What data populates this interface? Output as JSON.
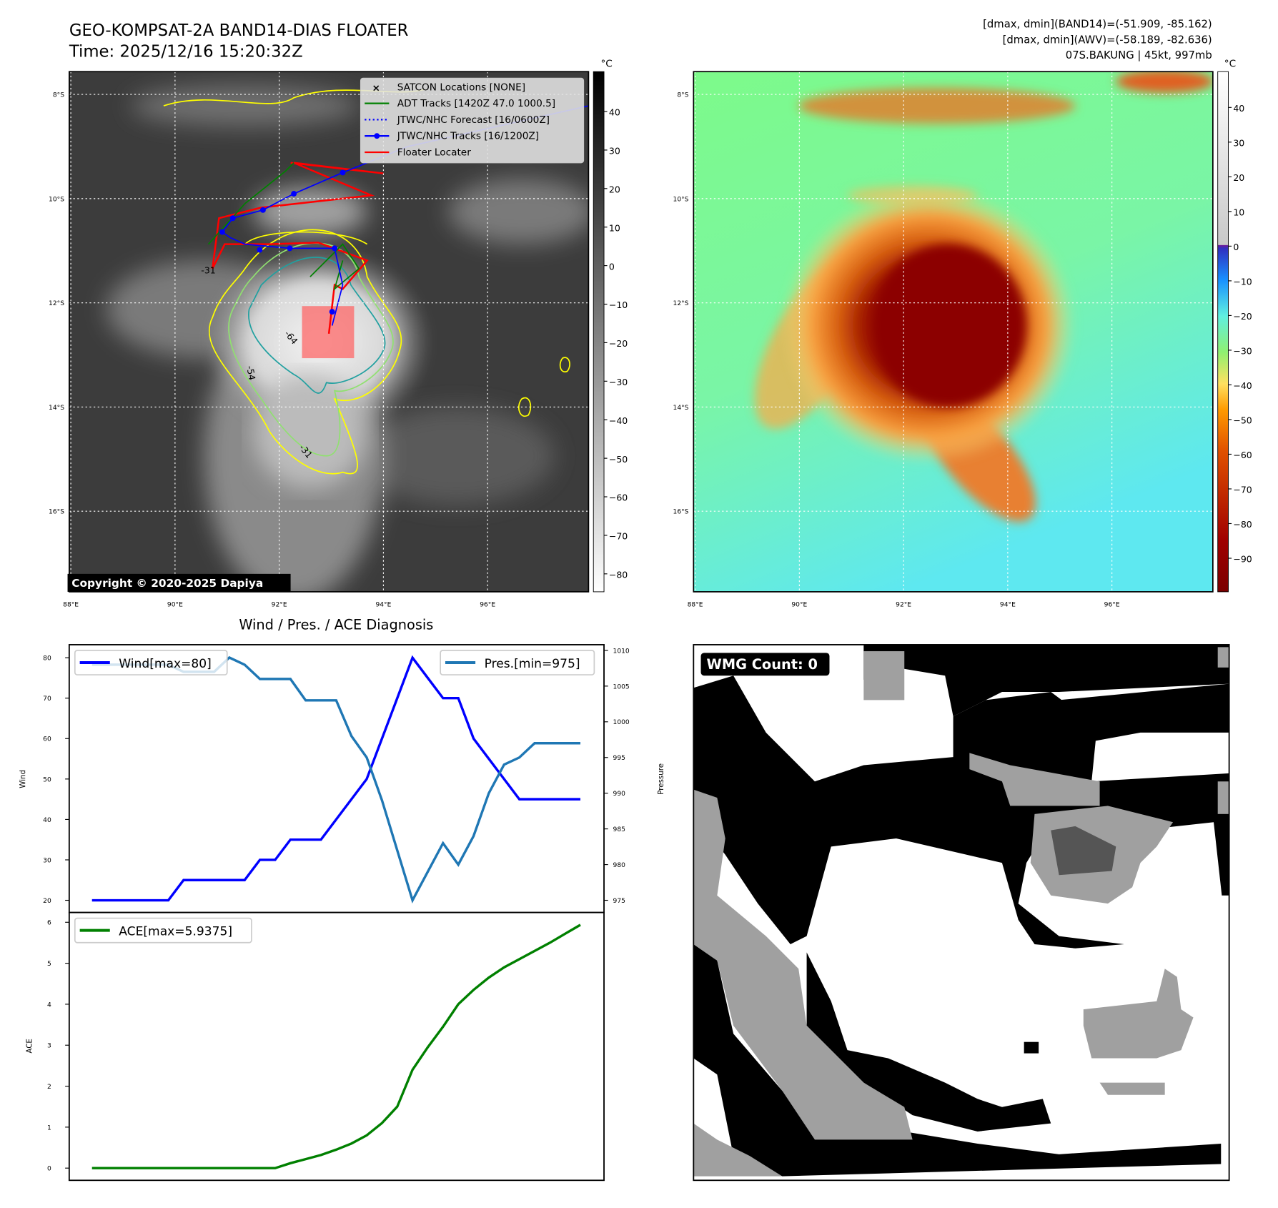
{
  "header": {
    "title": "GEO-KOMPSAT-2A BAND14-DIAS FLOATER",
    "time": "Time: 2025/12/16 15:20:32Z",
    "stats": [
      "[dmax, dmin](BAND14)=(-51.909, -85.162)",
      "[dmax, dmin](AWV)=(-58.189, -82.636)",
      "07S.BAKUNG | 45kt, 997mb"
    ]
  },
  "maps": {
    "lat_labels": [
      "8°S",
      "10°S",
      "12°S",
      "14°S",
      "16°S"
    ],
    "lon_labels": [
      "88°E",
      "90°E",
      "92°E",
      "94°E",
      "96°E"
    ],
    "unit": "°C",
    "copyright": "Copyright © 2020-2025 Dapiya",
    "contour_labels": [
      "-31",
      "-54",
      "-64",
      "-31"
    ],
    "legend": [
      {
        "label": "SATCON Locations [NONE]",
        "color": "#17becf"
      },
      {
        "label": "ADT Tracks [1420Z 47.0 1000.5]",
        "color": "#008000"
      },
      {
        "label": "JTWC/NHC Forecast [16/0600Z]",
        "color": "#0000ff"
      },
      {
        "label": "JTWC/NHC Tracks [16/1200Z]",
        "color": "#0000ff"
      },
      {
        "label": "Floater Locater",
        "color": "#ff0000"
      }
    ],
    "colorbar_gray_ticks": [
      "40",
      "30",
      "20",
      "10",
      "0",
      "−10",
      "−20",
      "−30",
      "−40",
      "−50",
      "−60",
      "−70",
      "−80"
    ],
    "colorbar_color_ticks": [
      "40",
      "30",
      "20",
      "10",
      "0",
      "−10",
      "−20",
      "−30",
      "−40",
      "−50",
      "−60",
      "−70",
      "−80",
      "−90"
    ]
  },
  "wmg": {
    "label": "WMG Count: 0"
  },
  "chart_data": [
    {
      "type": "line",
      "title": "Wind / Pres. / ACE Diagnosis",
      "ylabel": "Wind",
      "ylabel_right": "Pressure",
      "ylim": [
        20,
        80
      ],
      "ylim_right": [
        975,
        1010
      ],
      "yticks": [
        "20",
        "30",
        "40",
        "50",
        "60",
        "70",
        "80"
      ],
      "yticks_right": [
        "975",
        "980",
        "985",
        "990",
        "995",
        "1000",
        "1005",
        "1010"
      ],
      "series": [
        {
          "name": "Wind[max=80]",
          "axis": "left",
          "color": "#0000ff",
          "values": [
            20,
            20,
            20,
            20,
            20,
            20,
            25,
            25,
            25,
            25,
            25,
            30,
            30,
            35,
            35,
            35,
            40,
            45,
            50,
            60,
            70,
            80,
            75,
            70,
            70,
            60,
            55,
            50,
            45,
            45,
            45,
            45,
            45
          ]
        },
        {
          "name": "Pres.[min=975]",
          "axis": "right",
          "color": "#1f77b4",
          "values": [
            1008,
            1008,
            1008,
            1008,
            1008,
            1008,
            1007,
            1007,
            1007,
            1009,
            1008,
            1006,
            1006,
            1006,
            1003,
            1003,
            1003,
            998,
            995,
            989,
            982,
            975,
            979,
            983,
            980,
            984,
            990,
            994,
            995,
            997,
            997,
            997,
            997
          ]
        }
      ]
    },
    {
      "type": "line",
      "ylabel": "ACE",
      "ylim": [
        0,
        6
      ],
      "yticks": [
        "0",
        "1",
        "2",
        "3",
        "4",
        "5",
        "6"
      ],
      "series": [
        {
          "name": "ACE[max=5.9375]",
          "color": "#008000",
          "values": [
            0,
            0,
            0,
            0,
            0,
            0,
            0,
            0,
            0,
            0,
            0,
            0,
            0,
            0.12,
            0.22,
            0.32,
            0.45,
            0.6,
            0.8,
            1.1,
            1.5,
            2.4,
            2.95,
            3.45,
            4.0,
            4.35,
            4.65,
            4.9,
            5.1,
            5.3,
            5.5,
            5.72,
            5.9375
          ]
        }
      ]
    }
  ]
}
